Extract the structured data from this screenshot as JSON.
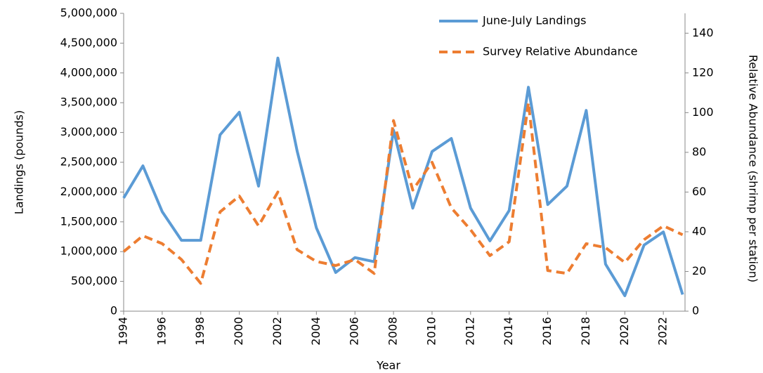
{
  "chart_data": {
    "type": "line",
    "x": [
      1994,
      1995,
      1996,
      1997,
      1998,
      1999,
      2000,
      2001,
      2002,
      2003,
      2004,
      2005,
      2006,
      2007,
      2008,
      2009,
      2010,
      2011,
      2012,
      2013,
      2014,
      2015,
      2016,
      2017,
      2018,
      2019,
      2020,
      2021,
      2022,
      2023
    ],
    "xlim": [
      1994,
      2023
    ],
    "xticks": [
      1994,
      1996,
      1998,
      2000,
      2002,
      2004,
      2006,
      2008,
      2010,
      2012,
      2014,
      2016,
      2018,
      2020,
      2022
    ],
    "xlabel": "Year",
    "ylabel": "Landings (pounds)",
    "y2label": "Relative Abundance (shrimp per station)",
    "ylim": [
      0,
      5000000
    ],
    "yticks": [
      0,
      {
        "value": 500000,
        "label": "500,000"
      },
      {
        "value": 1000000,
        "label": "1,000,000"
      },
      {
        "value": 1500000,
        "label": "1,500,000"
      },
      {
        "value": 2000000,
        "label": "2,000,000"
      },
      {
        "value": 2500000,
        "label": "2,500,000"
      },
      {
        "value": 3000000,
        "label": "3,000,000"
      },
      {
        "value": 3500000,
        "label": "3,500,000"
      },
      {
        "value": 4000000,
        "label": "4,000,000"
      },
      {
        "value": 4500000,
        "label": "4,500,000"
      },
      {
        "value": 5000000,
        "label": "5,000,000"
      }
    ],
    "y2lim": [
      0,
      150
    ],
    "y2ticks": [
      0,
      20,
      40,
      60,
      80,
      100,
      120,
      140
    ],
    "legend": "top-right",
    "series": [
      {
        "name": "June-July Landings",
        "color": "#5b9bd5",
        "dash": false,
        "values": [
          1900000,
          2440000,
          1670000,
          1190000,
          1190000,
          2960000,
          3340000,
          2100000,
          4250000,
          2690000,
          1400000,
          650000,
          900000,
          830000,
          3040000,
          1730000,
          2680000,
          2900000,
          1730000,
          1180000,
          1690000,
          3760000,
          1790000,
          2100000,
          3370000,
          790000,
          260000,
          1110000,
          1330000,
          280000
        ]
      },
      {
        "name": "Survey Relative Abundance",
        "color": "#ed7d31",
        "dash": true,
        "axis": "y2",
        "values": [
          30,
          38,
          34,
          26,
          14,
          50,
          58,
          43,
          60,
          31,
          25,
          23,
          26,
          19,
          96,
          61,
          75,
          52,
          41,
          28,
          35,
          105,
          20.5,
          19,
          34,
          32,
          24.5,
          36,
          43,
          38.5
        ]
      }
    ]
  }
}
